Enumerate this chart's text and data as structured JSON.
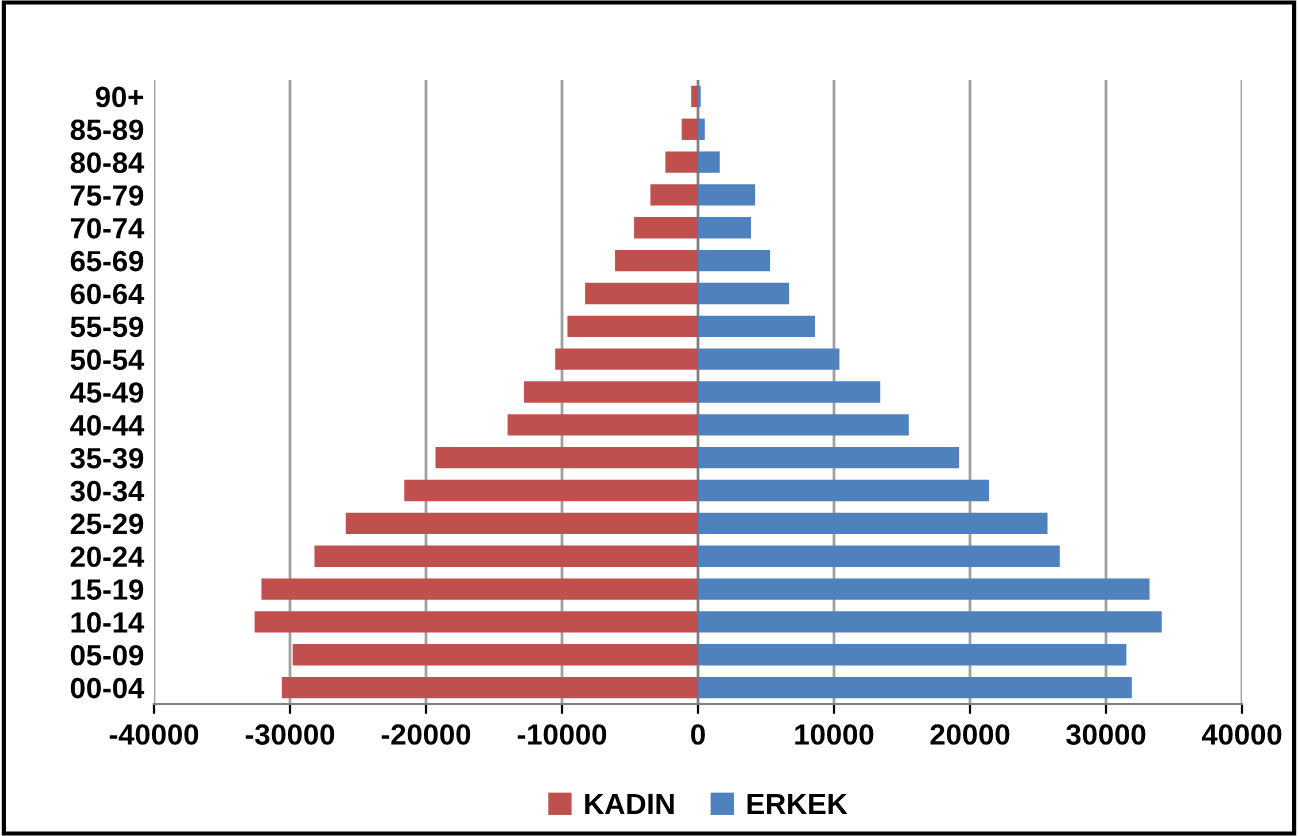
{
  "chart_data": {
    "type": "bar",
    "orientation": "horizontal",
    "categories": [
      "90+",
      "85-89",
      "80-84",
      "75-79",
      "70-74",
      "65-69",
      "60-64",
      "55-59",
      "50-54",
      "45-49",
      "40-44",
      "35-39",
      "30-34",
      "25-29",
      "20-24",
      "15-19",
      "10-14",
      "05-09",
      "00-04"
    ],
    "series": [
      {
        "name": "KADIN",
        "color": "#c0504d",
        "values": [
          -500,
          -1200,
          -2400,
          -3500,
          -4700,
          -6100,
          -8300,
          -9600,
          -10500,
          -12800,
          -14000,
          -19300,
          -21600,
          -25900,
          -28200,
          -32100,
          -32600,
          -29800,
          -30600
        ]
      },
      {
        "name": "ERKEK",
        "color": "#4f81bd",
        "values": [
          200,
          500,
          1600,
          4200,
          3900,
          5300,
          6700,
          8600,
          10400,
          13400,
          15500,
          19200,
          21400,
          25700,
          26600,
          33200,
          34100,
          31500,
          31900
        ]
      }
    ],
    "xlim": [
      -40000,
      40000
    ],
    "xticks": [
      -40000,
      -30000,
      -20000,
      -10000,
      0,
      10000,
      20000,
      30000,
      40000
    ],
    "grid": "x",
    "legend": "bottom",
    "stacked": true
  }
}
